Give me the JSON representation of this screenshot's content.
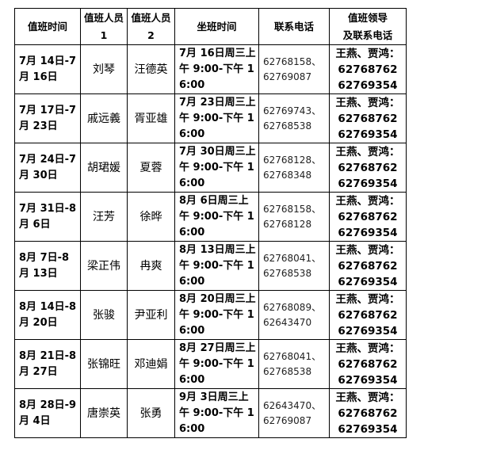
{
  "headers": {
    "date": "值班时间",
    "staff1_line1": "值班人员",
    "staff1_line2": "1",
    "staff2_line1": "值班人员",
    "staff2_line2": "2",
    "shift": "坐班时间",
    "phone": "联系电话",
    "leader_line1": "值班领导",
    "leader_line2": "及联系电话"
  },
  "rows": [
    {
      "date": "7月 14日-7月 16日",
      "staff1": "刘琴",
      "staff2": "汪德英",
      "shift": "7月 16日周三上午 9:00-下午 16:00",
      "phone1": "62768158、",
      "phone2": "62769087",
      "leader": "王燕、贾鸿：",
      "leader_phone1": "62768762",
      "leader_phone2": "62769354"
    },
    {
      "date": "7月 17日-7月 23日",
      "staff1": "戚远義",
      "staff2": "胥亚雄",
      "shift": "7月 23日周三上午 9:00-下午 16:00",
      "phone1": "62769743、",
      "phone2": "62768538",
      "leader": "王燕、贾鸿：",
      "leader_phone1": "62768762",
      "leader_phone2": "62769354"
    },
    {
      "date": "7月 24日-7月 30日",
      "staff1": "胡珺媛",
      "staff2": "夏蓉",
      "shift": "7月 30日周三上午 9:00-下午 16:00",
      "phone1": "62768128、",
      "phone2": "62768348",
      "leader": "王燕、贾鸿：",
      "leader_phone1": "62768762",
      "leader_phone2": "62769354"
    },
    {
      "date": "7月 31日-8月 6日",
      "staff1": "汪芳",
      "staff2": "徐晔",
      "shift": "8月 6日周三上午 9:00-下午 16:00",
      "phone1": "62768158、",
      "phone2": "62768128",
      "leader": "王燕、贾鸿：",
      "leader_phone1": "62768762",
      "leader_phone2": "62769354"
    },
    {
      "date": "8月 7日-8月 13日",
      "staff1": "梁正伟",
      "staff2": "冉爽",
      "shift": "8月 13日周三上午 9:00-下午 16:00",
      "phone1": "62768041、",
      "phone2": "62768538",
      "leader": "王燕、贾鸿：",
      "leader_phone1": "62768762",
      "leader_phone2": "62769354"
    },
    {
      "date": "8月 14日-8月 20日",
      "staff1": "张骏",
      "staff2": "尹亚利",
      "shift": "8月 20日周三上午 9:00-下午 16:00",
      "phone1": "62768089、",
      "phone2": "62643470",
      "leader": "王燕、贾鸿：",
      "leader_phone1": "62768762",
      "leader_phone2": "62769354"
    },
    {
      "date": "8月 21日-8月 27日",
      "staff1": "张锦旺",
      "staff2": "邓迪娟",
      "shift": "8月 27日周三上午 9:00-下午 16:00",
      "phone1": "62768041、",
      "phone2": "62768538",
      "leader": "王燕、贾鸿：",
      "leader_phone1": "62768762",
      "leader_phone2": "62769354"
    },
    {
      "date": "8月 28日-9月 4日",
      "staff1": "唐崇英",
      "staff2": "张勇",
      "shift": "9月 3日周三上午 9:00-下午 16:00",
      "phone1": "62643470、",
      "phone2": "62769087",
      "leader": "王燕、贾鸿：",
      "leader_phone1": "62768762",
      "leader_phone2": "62769354"
    }
  ]
}
